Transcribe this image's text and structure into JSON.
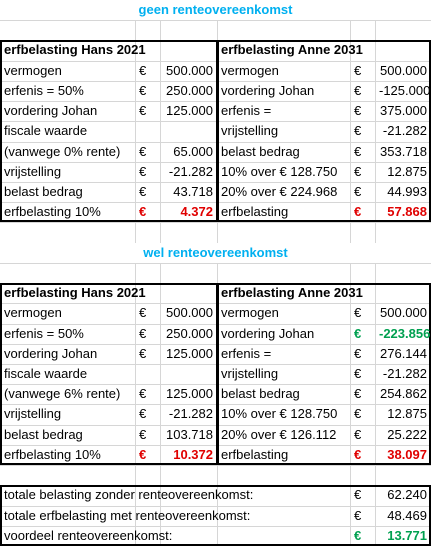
{
  "sections": [
    {
      "title": "geen renteovereenkomst",
      "left": {
        "header": "erfbelasting Hans 2021",
        "rows": [
          {
            "label": "vermogen",
            "currency": "€",
            "value": "500.000"
          },
          {
            "label": "erfenis = 50%",
            "currency": "€",
            "value": "250.000"
          },
          {
            "label": "vordering Johan",
            "currency": "€",
            "value": "125.000"
          },
          {
            "label": "fiscale waarde"
          },
          {
            "label": "(vanwege 0% rente)",
            "currency": "€",
            "value": "65.000"
          },
          {
            "label": "vrijstelling",
            "currency": "€",
            "value": "-21.282"
          },
          {
            "label": "belast bedrag",
            "currency": "€",
            "value": "43.718"
          },
          {
            "label": "erfbelasting 10%",
            "currency": "€",
            "value": "4.372",
            "color": "#e00000"
          }
        ]
      },
      "right": {
        "header": "erfbelasting Anne 2031",
        "rows": [
          {
            "label": "vermogen",
            "currency": "€",
            "value": "500.000"
          },
          {
            "label": "vordering Johan",
            "currency": "€",
            "value": "-125.000"
          },
          {
            "label": "erfenis =",
            "currency": "€",
            "value": "375.000"
          },
          {
            "label": "vrijstelling",
            "currency": "€",
            "value": "-21.282"
          },
          {
            "label": "belast bedrag",
            "currency": "€",
            "value": "353.718"
          },
          {
            "label": "10% over € 128.750",
            "currency": "€",
            "value": "12.875"
          },
          {
            "label": "20% over € 224.968",
            "currency": "€",
            "value": "44.993"
          },
          {
            "label": "erfbelasting",
            "currency": "€",
            "value": "57.868",
            "color": "#e00000"
          }
        ]
      }
    },
    {
      "title": "wel renteovereenkomst",
      "left": {
        "header": "erfbelasting Hans 2021",
        "rows": [
          {
            "label": "vermogen",
            "currency": "€",
            "value": "500.000"
          },
          {
            "label": "erfenis = 50%",
            "currency": "€",
            "value": "250.000"
          },
          {
            "label": "vordering Johan",
            "currency": "€",
            "value": "125.000"
          },
          {
            "label": "fiscale waarde"
          },
          {
            "label": "(vanwege 6% rente)",
            "currency": "€",
            "value": "125.000"
          },
          {
            "label": "vrijstelling",
            "currency": "€",
            "value": "-21.282"
          },
          {
            "label": "belast bedrag",
            "currency": "€",
            "value": "103.718"
          },
          {
            "label": "erfbelasting 10%",
            "currency": "€",
            "value": "10.372",
            "color": "#e00000"
          }
        ]
      },
      "right": {
        "header": "erfbelasting Anne 2031",
        "rows": [
          {
            "label": "vermogen",
            "currency": "€",
            "value": "500.000"
          },
          {
            "label": "vordering Johan",
            "currency": "€",
            "value": "-223.856",
            "color": "#00a050"
          },
          {
            "label": "erfenis =",
            "currency": "€",
            "value": "276.144"
          },
          {
            "label": "vrijstelling",
            "currency": "€",
            "value": "-21.282"
          },
          {
            "label": "belast bedrag",
            "currency": "€",
            "value": "254.862"
          },
          {
            "label": "10% over € 128.750",
            "currency": "€",
            "value": "12.875"
          },
          {
            "label": "20% over € 126.112",
            "currency": "€",
            "value": "25.222"
          },
          {
            "label": "erfbelasting",
            "currency": "€",
            "value": "38.097",
            "color": "#e00000"
          }
        ]
      }
    }
  ],
  "totals": [
    {
      "label": "totale belasting zonder renteovereenkomst:",
      "currency": "€",
      "value": "62.240"
    },
    {
      "label": "totale erfbelasting met renteovereenkomst:",
      "currency": "€",
      "value": "48.469"
    },
    {
      "label": "voordeel renteovereenkomst:",
      "currency": "€",
      "value": "13.771",
      "color": "#00a050"
    }
  ]
}
